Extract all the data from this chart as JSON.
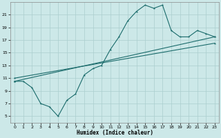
{
  "xlabel": "Humidex (Indice chaleur)",
  "xlim": [
    -0.5,
    23.5
  ],
  "ylim": [
    4,
    23
  ],
  "xticks": [
    0,
    1,
    2,
    3,
    4,
    5,
    6,
    7,
    8,
    9,
    10,
    11,
    12,
    13,
    14,
    15,
    16,
    17,
    18,
    19,
    20,
    21,
    22,
    23
  ],
  "yticks": [
    5,
    7,
    9,
    11,
    13,
    15,
    17,
    19,
    21
  ],
  "background_color": "#cce8e8",
  "grid_color": "#aacece",
  "line_color": "#1a6b6b",
  "curve1_x": [
    0,
    1,
    2,
    3,
    4,
    5,
    6,
    7,
    8,
    9,
    10,
    11,
    12,
    13,
    14,
    15,
    16,
    17,
    18,
    19,
    20,
    21,
    22,
    23
  ],
  "curve1_y": [
    10.5,
    10.5,
    9.5,
    7.0,
    6.5,
    5.0,
    7.5,
    8.5,
    11.5,
    12.5,
    13.0,
    15.5,
    17.5,
    20.0,
    21.5,
    22.5,
    22.0,
    22.5,
    18.5,
    17.5,
    17.5,
    18.5,
    18.0,
    17.5
  ],
  "line2_x": [
    0,
    23
  ],
  "line2_y": [
    10.5,
    17.5
  ],
  "line3_x": [
    0,
    23
  ],
  "line3_y": [
    11.0,
    16.5
  ]
}
